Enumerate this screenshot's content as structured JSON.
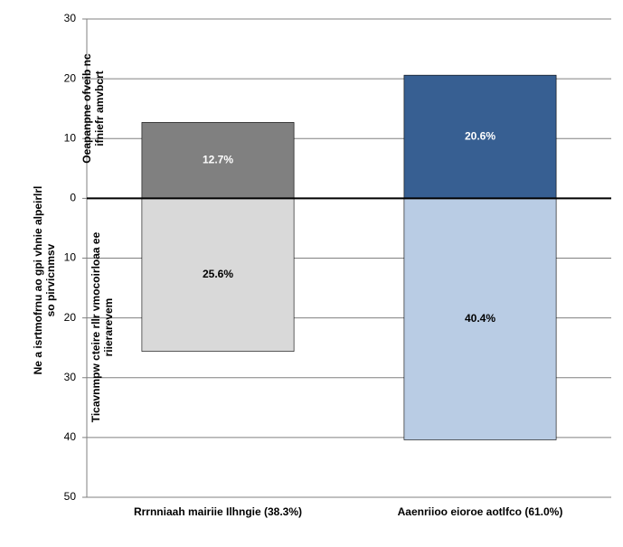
{
  "chart_data": {
    "type": "diverging-bar",
    "ylabel": [
      "Ne a isrtmofrnu ao gpi vhnie alpeirlrl",
      "so pirvicnmsv"
    ],
    "categories": [
      "Rrrnniaah mairiie Ilhngie (38.3%)",
      "Aaenriioo eioroe aotlfco (61.0%)"
    ],
    "series": [
      {
        "name": [
          "Oeapanpne ofveib nc",
          "ifniefr amvbcrt"
        ],
        "colors": [
          "#808080",
          "#375f92"
        ],
        "label_color": "#ffffff",
        "values": [
          12.7,
          20.6
        ],
        "value_labels": [
          "12.7%",
          "20.6%"
        ]
      },
      {
        "name": [
          "Ticavnmpw cteire rllr vmocoirloaa ee",
          "riierarevem"
        ],
        "colors": [
          "#d9d9d9",
          "#b9cce4"
        ],
        "label_color": "#000000",
        "values": [
          -25.6,
          -40.4
        ],
        "value_labels": [
          "25.6%",
          "40.4%"
        ]
      }
    ],
    "ylim": [
      -50,
      30
    ],
    "yticks": [
      30,
      20,
      10,
      0,
      {
        "value": -10,
        "label": "10"
      },
      {
        "value": -20,
        "label": "20"
      },
      {
        "value": -30,
        "label": "30"
      },
      {
        "value": -40,
        "label": "40"
      },
      {
        "value": -50,
        "label": "50"
      }
    ],
    "grid": true
  }
}
